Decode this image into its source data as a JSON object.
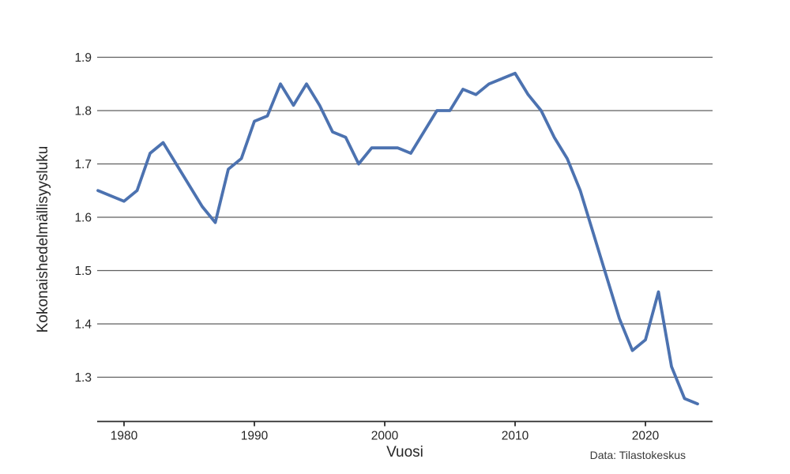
{
  "chart_data": {
    "type": "line",
    "title": "",
    "xlabel": "Vuosi",
    "ylabel": "Kokonaishedelmällisyysluku",
    "source_note": "Data: Tilastokeskus",
    "legend": "none",
    "grid": "horizontal-only",
    "xlim": [
      1977.94,
      2025.15
    ],
    "ylim": [
      1.217,
      1.9
    ],
    "xticks": [
      {
        "v": 1980,
        "label": "1980"
      },
      {
        "v": 1990,
        "label": "1990"
      },
      {
        "v": 2000,
        "label": "2000"
      },
      {
        "v": 2010,
        "label": "2010"
      },
      {
        "v": 2020,
        "label": "2020"
      }
    ],
    "yticks": [
      {
        "v": 1.3,
        "label": "1.3"
      },
      {
        "v": 1.4,
        "label": "1.4"
      },
      {
        "v": 1.5,
        "label": "1.5"
      },
      {
        "v": 1.6,
        "label": "1.6"
      },
      {
        "v": 1.7,
        "label": "1.7"
      },
      {
        "v": 1.8,
        "label": "1.8"
      },
      {
        "v": 1.9,
        "label": "1.9"
      }
    ],
    "x": [
      1978,
      1979,
      1980,
      1981,
      1982,
      1983,
      1984,
      1985,
      1986,
      1987,
      1988,
      1989,
      1990,
      1991,
      1992,
      1993,
      1994,
      1995,
      1996,
      1997,
      1998,
      1999,
      2000,
      2001,
      2002,
      2003,
      2004,
      2005,
      2006,
      2007,
      2008,
      2009,
      2010,
      2011,
      2012,
      2013,
      2014,
      2015,
      2016,
      2017,
      2018,
      2019,
      2020,
      2021,
      2022,
      2023,
      2024
    ],
    "series": [
      {
        "name": "Kokonaishedelmällisyysluku",
        "color": "#4c72b0",
        "values": [
          1.65,
          1.64,
          1.63,
          1.65,
          1.72,
          1.74,
          1.7,
          1.66,
          1.62,
          1.59,
          1.69,
          1.71,
          1.78,
          1.79,
          1.85,
          1.81,
          1.85,
          1.81,
          1.76,
          1.75,
          1.7,
          1.73,
          1.73,
          1.73,
          1.72,
          1.76,
          1.8,
          1.8,
          1.84,
          1.83,
          1.85,
          1.86,
          1.87,
          1.83,
          1.8,
          1.75,
          1.71,
          1.65,
          1.57,
          1.49,
          1.41,
          1.35,
          1.37,
          1.46,
          1.32,
          1.26,
          1.25
        ]
      }
    ]
  },
  "colors": {
    "line": "#4c72b0",
    "grid": "#5f5f5f",
    "axis": "#2b2b2b",
    "text": "#262626"
  }
}
